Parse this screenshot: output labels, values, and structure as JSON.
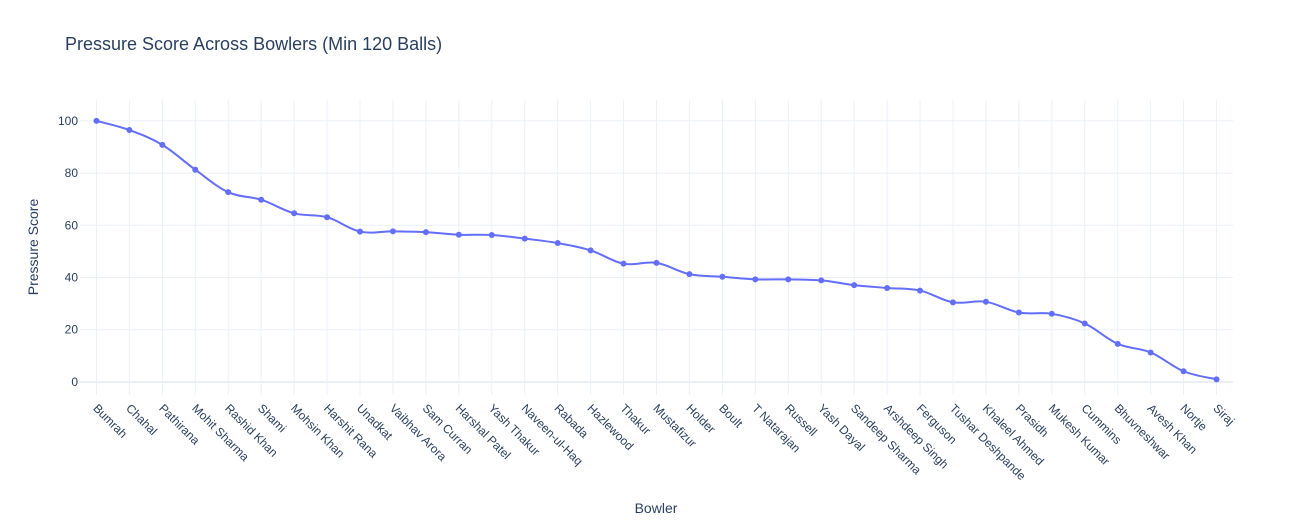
{
  "chart_data": {
    "type": "line",
    "title": "Pressure Score Across Bowlers (Min 120 Balls)",
    "xlabel": "Bowler",
    "ylabel": "Pressure Score",
    "ylim": [
      -5,
      108
    ],
    "yticks": [
      0,
      20,
      40,
      60,
      80,
      100
    ],
    "grid": true,
    "legend": "none",
    "color": "#636efa",
    "categories": [
      "Bumrah",
      "Chahal",
      "Pathirana",
      "Mohit Sharma",
      "Rashid Khan",
      "Shami",
      "Mohsin Khan",
      "Harshit Rana",
      "Unadkat",
      "Vaibhav Arora",
      "Sam Curran",
      "Harshal Patel",
      "Yash Thakur",
      "Naveen-ul-Haq",
      "Rabada",
      "Hazlewood",
      "Thakur",
      "Mustafizur",
      "Holder",
      "Boult",
      "T Natarajan",
      "Russell",
      "Yash Dayal",
      "Sandeep Sharma",
      "Arshdeep Singh",
      "Ferguson",
      "Tushar Deshpande",
      "Khaleel Ahmed",
      "Prasidh",
      "Mukesh Kumar",
      "Cummins",
      "Bhuvneshwar",
      "Avesh Khan",
      "Nortje",
      "Siraj"
    ],
    "series": [
      {
        "values": [
          100,
          96.5,
          90.8,
          81.3,
          72.7,
          69.8,
          64.6,
          63.1,
          57.6,
          57.7,
          57.4,
          56.4,
          56.3,
          54.9,
          53.2,
          50.4,
          45.3,
          45.6,
          41.3,
          40.3,
          39.3,
          39.3,
          38.9,
          37.1,
          36.0,
          35.0,
          30.5,
          30.7,
          26.6,
          26.1,
          22.4,
          14.6,
          11.3,
          4.1,
          1.0
        ]
      }
    ]
  }
}
